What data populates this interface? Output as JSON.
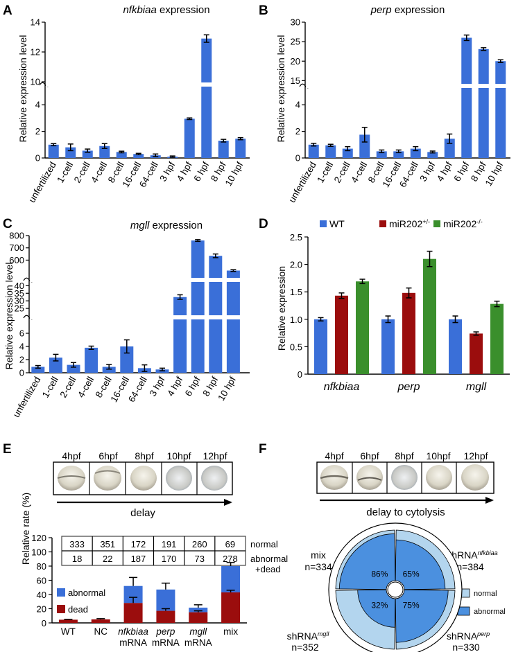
{
  "colors": {
    "blue": "#3a6fd8",
    "red": "#9b0d0d",
    "green": "#3a8f2c",
    "light": "#b3d5ee",
    "mid": "#4b90df"
  },
  "panels": {
    "A": {
      "label": "A",
      "title_italic": "nfkbiaa",
      "title_rest": " expression"
    },
    "B": {
      "label": "B",
      "title_italic": "perp",
      "title_rest": " expression"
    },
    "C": {
      "label": "C",
      "title_italic": "mgll",
      "title_rest": " expression"
    },
    "D": {
      "label": "D"
    },
    "E": {
      "label": "E"
    },
    "F": {
      "label": "F"
    }
  },
  "ylabels": {
    "A": "Relative expression level",
    "B": "Relative expression level",
    "C": "Relative expression level",
    "D": "Relative expression",
    "E": "Relative rate (%)"
  },
  "stages": {
    "E": {
      "times": [
        "4hpf",
        "6hpf",
        "8hpf",
        "10hpf",
        "12hpf"
      ],
      "arrow_label": "delay"
    },
    "F": {
      "times": [
        "4hpf",
        "6hpf",
        "8hpf",
        "10hpf",
        "12hpf"
      ],
      "arrow_label": "delay to cytolysis"
    }
  },
  "count_table": {
    "normal_label": "normal",
    "abnormal_label_1": "abnormal",
    "abnormal_label_2": "+dead",
    "normal": [
      "333",
      "351",
      "172",
      "191",
      "260",
      "69"
    ],
    "abnormal": [
      "18",
      "22",
      "187",
      "170",
      "73",
      "278"
    ]
  },
  "chart_data": [
    {
      "panel": "A",
      "type": "bar",
      "title": "nfkbiaa expression",
      "ylabel": "Relative expression level",
      "categories": [
        "unfertilized",
        "1-cell",
        "2-cell",
        "4-cell",
        "8-cell",
        "16-cell",
        "64-cell",
        "3 hpf",
        "4 hpf",
        "6 hpf",
        "8 hpf",
        "10 hpf"
      ],
      "values": [
        1.0,
        0.8,
        0.55,
        0.9,
        0.45,
        0.3,
        0.2,
        0.1,
        2.95,
        12.9,
        1.3,
        1.45
      ],
      "errors": [
        0.08,
        0.25,
        0.12,
        0.18,
        0.06,
        0.05,
        0.1,
        0.05,
        0.06,
        0.25,
        0.1,
        0.08
      ],
      "y_break": {
        "lower": [
          0,
          5
        ],
        "upper": [
          10,
          14
        ]
      },
      "yticks": [
        0,
        2,
        4,
        10,
        12,
        14
      ]
    },
    {
      "panel": "B",
      "type": "bar",
      "title": "perp expression",
      "ylabel": "Relative expression level",
      "categories": [
        "unfertilized",
        "1-cell",
        "2-cell",
        "4-cell",
        "8-cell",
        "16-cell",
        "64-cell",
        "3 hpf",
        "4 hpf",
        "6 hpf",
        "8 hpf",
        "10 hpf"
      ],
      "values": [
        1.0,
        0.95,
        0.7,
        1.75,
        0.5,
        0.5,
        0.7,
        0.45,
        1.45,
        26.0,
        23.1,
        20.0
      ],
      "errors": [
        0.1,
        0.08,
        0.15,
        0.55,
        0.1,
        0.1,
        0.15,
        0.07,
        0.35,
        0.7,
        0.35,
        0.35
      ],
      "y_break": {
        "lower": [
          0,
          5
        ],
        "upper": [
          14,
          30
        ]
      },
      "yticks": [
        0,
        2,
        4,
        15,
        20,
        25,
        30
      ]
    },
    {
      "panel": "C",
      "type": "bar",
      "title": "mgll expression",
      "ylabel": "Relative expression level",
      "categories": [
        "unfertilized",
        "1-cell",
        "2-cell",
        "4-cell",
        "8-cell",
        "16-cell",
        "64-cell",
        "3 hpf",
        "4 hpf",
        "6 hpf",
        "8 hpf",
        "10 hpf"
      ],
      "values": [
        0.9,
        2.3,
        1.2,
        3.8,
        0.9,
        4.0,
        0.7,
        0.5,
        32.5,
        760,
        635,
        515
      ],
      "errors": [
        0.2,
        0.5,
        0.35,
        0.25,
        0.35,
        1.0,
        0.5,
        0.2,
        1.5,
        7,
        15,
        7
      ],
      "y_break": {
        "segments": [
          [
            0,
            8
          ],
          [
            20,
            42
          ],
          [
            450,
            800
          ]
        ]
      },
      "yticks": [
        0,
        2,
        4,
        6,
        25,
        30,
        35,
        40,
        600,
        700,
        800
      ]
    },
    {
      "panel": "D",
      "type": "bar",
      "ylabel": "Relative expression",
      "categories": [
        "nfkbiaa",
        "perp",
        "mgll"
      ],
      "series": [
        {
          "name": "WT",
          "values": [
            1.0,
            1.0,
            1.0
          ],
          "errors": [
            0.03,
            0.06,
            0.06
          ]
        },
        {
          "name": "miR202+/-",
          "values": [
            1.43,
            1.48,
            0.74
          ],
          "errors": [
            0.05,
            0.09,
            0.03
          ]
        },
        {
          "name": "miR202-/-",
          "values": [
            1.69,
            2.1,
            1.28
          ],
          "errors": [
            0.04,
            0.14,
            0.05
          ]
        }
      ],
      "ylim": [
        0,
        2.5
      ],
      "yticks": [
        "0",
        "0.5",
        "1.0",
        "1.5",
        "2.0",
        "2.5"
      ],
      "legend": "top"
    },
    {
      "panel": "E",
      "type": "bar",
      "stacked": true,
      "ylabel": "Relative rate (%)",
      "categories": [
        "WT",
        "NC",
        "nfkbiaa mRNA",
        "perp mRNA",
        "mgll mRNA",
        "mix"
      ],
      "series": [
        {
          "name": "dead",
          "values": [
            4.5,
            5,
            28,
            17,
            15,
            43
          ],
          "errors": [
            0.5,
            1,
            8,
            3,
            2,
            3
          ]
        },
        {
          "name": "abnormal",
          "values": [
            0,
            0,
            24,
            30,
            6.5,
            37
          ],
          "errors": [
            0,
            0,
            12,
            9,
            4,
            5
          ]
        }
      ],
      "ylim": [
        0,
        120
      ],
      "yticks": [
        "0",
        "20",
        "40",
        "60",
        "80",
        "100",
        "120"
      ],
      "legend": "top-left"
    },
    {
      "panel": "F",
      "type": "pie",
      "groups": [
        {
          "name": "mix",
          "n": "n=334",
          "abnormal": 86,
          "label": "86%"
        },
        {
          "name": "shRNA nfkbiaa",
          "n": "n=384",
          "abnormal": 65,
          "label": "65%"
        },
        {
          "name": "shRNA perp",
          "n": "n=330",
          "abnormal": 75,
          "label": "75%"
        },
        {
          "name": "shRNA mgll",
          "n": "n=352",
          "abnormal": 32,
          "label": "32%"
        }
      ],
      "legend": [
        "normal",
        "abnormal"
      ]
    }
  ]
}
